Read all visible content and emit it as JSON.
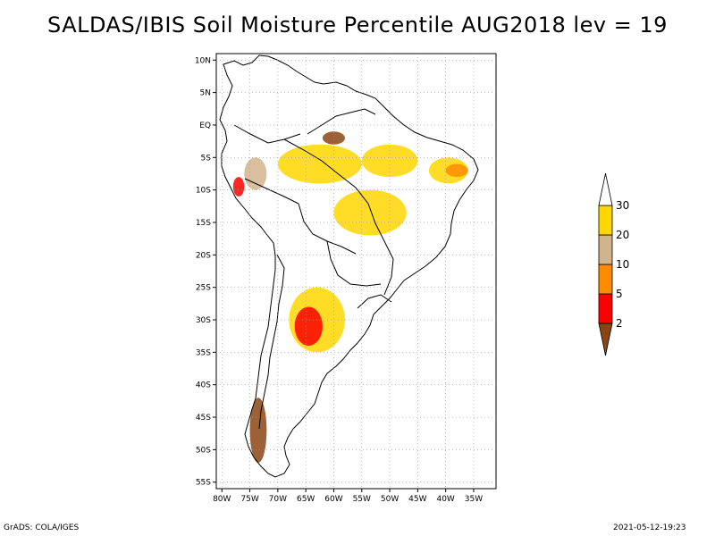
{
  "title": "SALDAS/IBIS Soil Moisture Percentile AUG2018 lev = 19",
  "footer": {
    "left": "GrADS: COLA/IGES",
    "right": "2021-05-12-19:23"
  },
  "map": {
    "lon_range": [
      -81,
      -31
    ],
    "lat_range": [
      -56,
      11
    ],
    "lat_ticks": [
      {
        "value": 10,
        "label": "10N"
      },
      {
        "value": 5,
        "label": "5N"
      },
      {
        "value": 0,
        "label": "EQ"
      },
      {
        "value": -5,
        "label": "5S"
      },
      {
        "value": -10,
        "label": "10S"
      },
      {
        "value": -15,
        "label": "15S"
      },
      {
        "value": -20,
        "label": "20S"
      },
      {
        "value": -25,
        "label": "25S"
      },
      {
        "value": -30,
        "label": "30S"
      },
      {
        "value": -35,
        "label": "35S"
      },
      {
        "value": -40,
        "label": "40S"
      },
      {
        "value": -45,
        "label": "45S"
      },
      {
        "value": -50,
        "label": "50S"
      },
      {
        "value": -55,
        "label": "55S"
      }
    ],
    "lon_ticks": [
      {
        "value": -80,
        "label": "80W"
      },
      {
        "value": -75,
        "label": "75W"
      },
      {
        "value": -70,
        "label": "70W"
      },
      {
        "value": -65,
        "label": "65W"
      },
      {
        "value": -60,
        "label": "60W"
      },
      {
        "value": -55,
        "label": "55W"
      },
      {
        "value": -50,
        "label": "50W"
      },
      {
        "value": -45,
        "label": "45W"
      },
      {
        "value": -40,
        "label": "40W"
      },
      {
        "value": -35,
        "label": "35W"
      }
    ],
    "grid": true
  },
  "legend": {
    "labels": [
      "2",
      "5",
      "10",
      "20",
      "30"
    ],
    "colors": [
      "#8b4513",
      "#ff0000",
      "#ff8c00",
      "#d2b48c",
      "#ffd700",
      "#ffffff"
    ]
  },
  "chart_data": {
    "type": "heatmap",
    "title": "SALDAS/IBIS Soil Moisture Percentile AUG2018 lev = 19",
    "xlabel": "",
    "ylabel": "",
    "xlim": [
      -81,
      -31
    ],
    "ylim": [
      -56,
      11
    ],
    "grid": true,
    "legend_position": "right",
    "color_scale": {
      "breaks": [
        2,
        5,
        10,
        20,
        30
      ],
      "colors": {
        "<2": "#8b4513",
        "2-5": "#ff0000",
        "5-10": "#ff8c00",
        "10-20": "#d2b48c",
        "20-30": "#ffd700",
        ">30": "#ffffff"
      }
    },
    "regions": [
      {
        "name": "",
        "lon": [
          -70,
          -55
        ],
        "lat": [
          -3,
          -9
        ],
        "class": "20-30"
      },
      {
        "name": "",
        "lon": [
          -55,
          -45
        ],
        "lat": [
          -3,
          -8
        ],
        "class": "20-30"
      },
      {
        "name": "",
        "lon": [
          -60,
          -47
        ],
        "lat": [
          -10,
          -17
        ],
        "class": "20-30"
      },
      {
        "name": "",
        "lon": [
          -43,
          -36
        ],
        "lat": [
          -5,
          -9
        ],
        "class": "20-30"
      },
      {
        "name": "",
        "lon": [
          -76,
          -72
        ],
        "lat": [
          -5,
          -10
        ],
        "class": "10-20"
      },
      {
        "name": "",
        "lon": [
          -68,
          -58
        ],
        "lat": [
          -25,
          -35
        ],
        "class": "20-30"
      },
      {
        "name": "",
        "lon": [
          -67,
          -62
        ],
        "lat": [
          -28,
          -34
        ],
        "class": "2-5"
      },
      {
        "name": "",
        "lon": [
          -78,
          -76
        ],
        "lat": [
          -8,
          -11
        ],
        "class": "2-5"
      },
      {
        "name": "",
        "lon": [
          -62,
          -58
        ],
        "lat": [
          -1,
          -3
        ],
        "class": "<2"
      },
      {
        "name": "",
        "lon": [
          -40,
          -36
        ],
        "lat": [
          -6,
          -8
        ],
        "class": "5-10"
      },
      {
        "name": "",
        "lon": [
          -75,
          -72
        ],
        "lat": [
          -42,
          -52
        ],
        "class": "<2"
      }
    ]
  }
}
